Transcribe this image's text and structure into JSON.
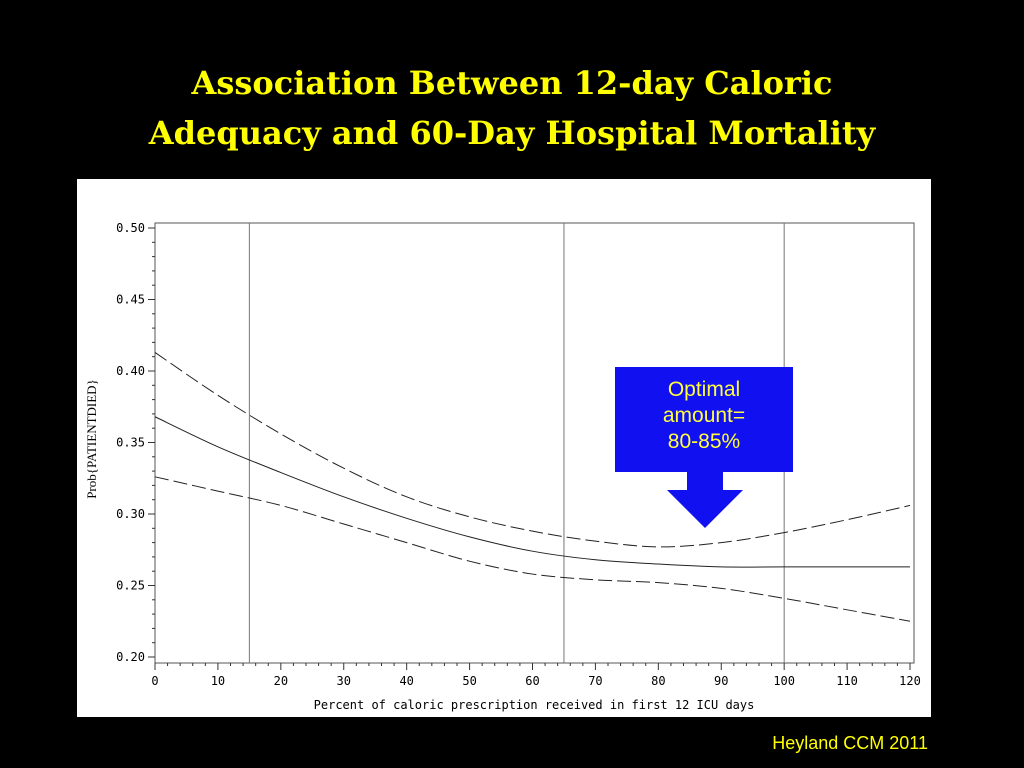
{
  "slide": {
    "title_line1": "Association Between 12-day Caloric",
    "title_line2": "Adequacy and 60-Day Hospital Mortality",
    "callout_line1": "Optimal",
    "callout_line2": "amount=",
    "callout_line3": "80-85%",
    "citation": "Heyland CCM 2011"
  },
  "colors": {
    "background": "#000000",
    "title": "#ffff00",
    "callout_fill": "#1010f0",
    "callout_text": "#ffff40",
    "arrow": "#1010f0"
  },
  "chart_data": {
    "type": "line",
    "xlabel": "Percent of caloric prescription received in first 12 ICU days",
    "ylabel": "Prob{PATIENTDIED}",
    "xlim": [
      0,
      120
    ],
    "ylim": [
      0.2,
      0.5
    ],
    "xticks": [
      0,
      10,
      20,
      30,
      40,
      50,
      60,
      70,
      80,
      90,
      100,
      110,
      120
    ],
    "yticks": [
      "0.20",
      "0.25",
      "0.30",
      "0.35",
      "0.40",
      "0.45",
      "0.50"
    ],
    "reference_lines_x": [
      15,
      65,
      100
    ],
    "grid": false,
    "x": [
      0,
      10,
      20,
      30,
      40,
      50,
      60,
      70,
      80,
      90,
      100,
      110,
      120
    ],
    "series": [
      {
        "style": "dashed",
        "values": [
          0.413,
          0.383,
          0.356,
          0.332,
          0.312,
          0.298,
          0.288,
          0.281,
          0.277,
          0.28,
          0.287,
          0.296,
          0.306
        ]
      },
      {
        "style": "solid",
        "values": [
          0.368,
          0.347,
          0.329,
          0.312,
          0.297,
          0.284,
          0.274,
          0.268,
          0.265,
          0.263,
          0.263,
          0.263,
          0.263
        ]
      },
      {
        "style": "dashed",
        "values": [
          0.326,
          0.316,
          0.306,
          0.293,
          0.28,
          0.267,
          0.258,
          0.254,
          0.252,
          0.248,
          0.241,
          0.233,
          0.225
        ]
      }
    ]
  }
}
